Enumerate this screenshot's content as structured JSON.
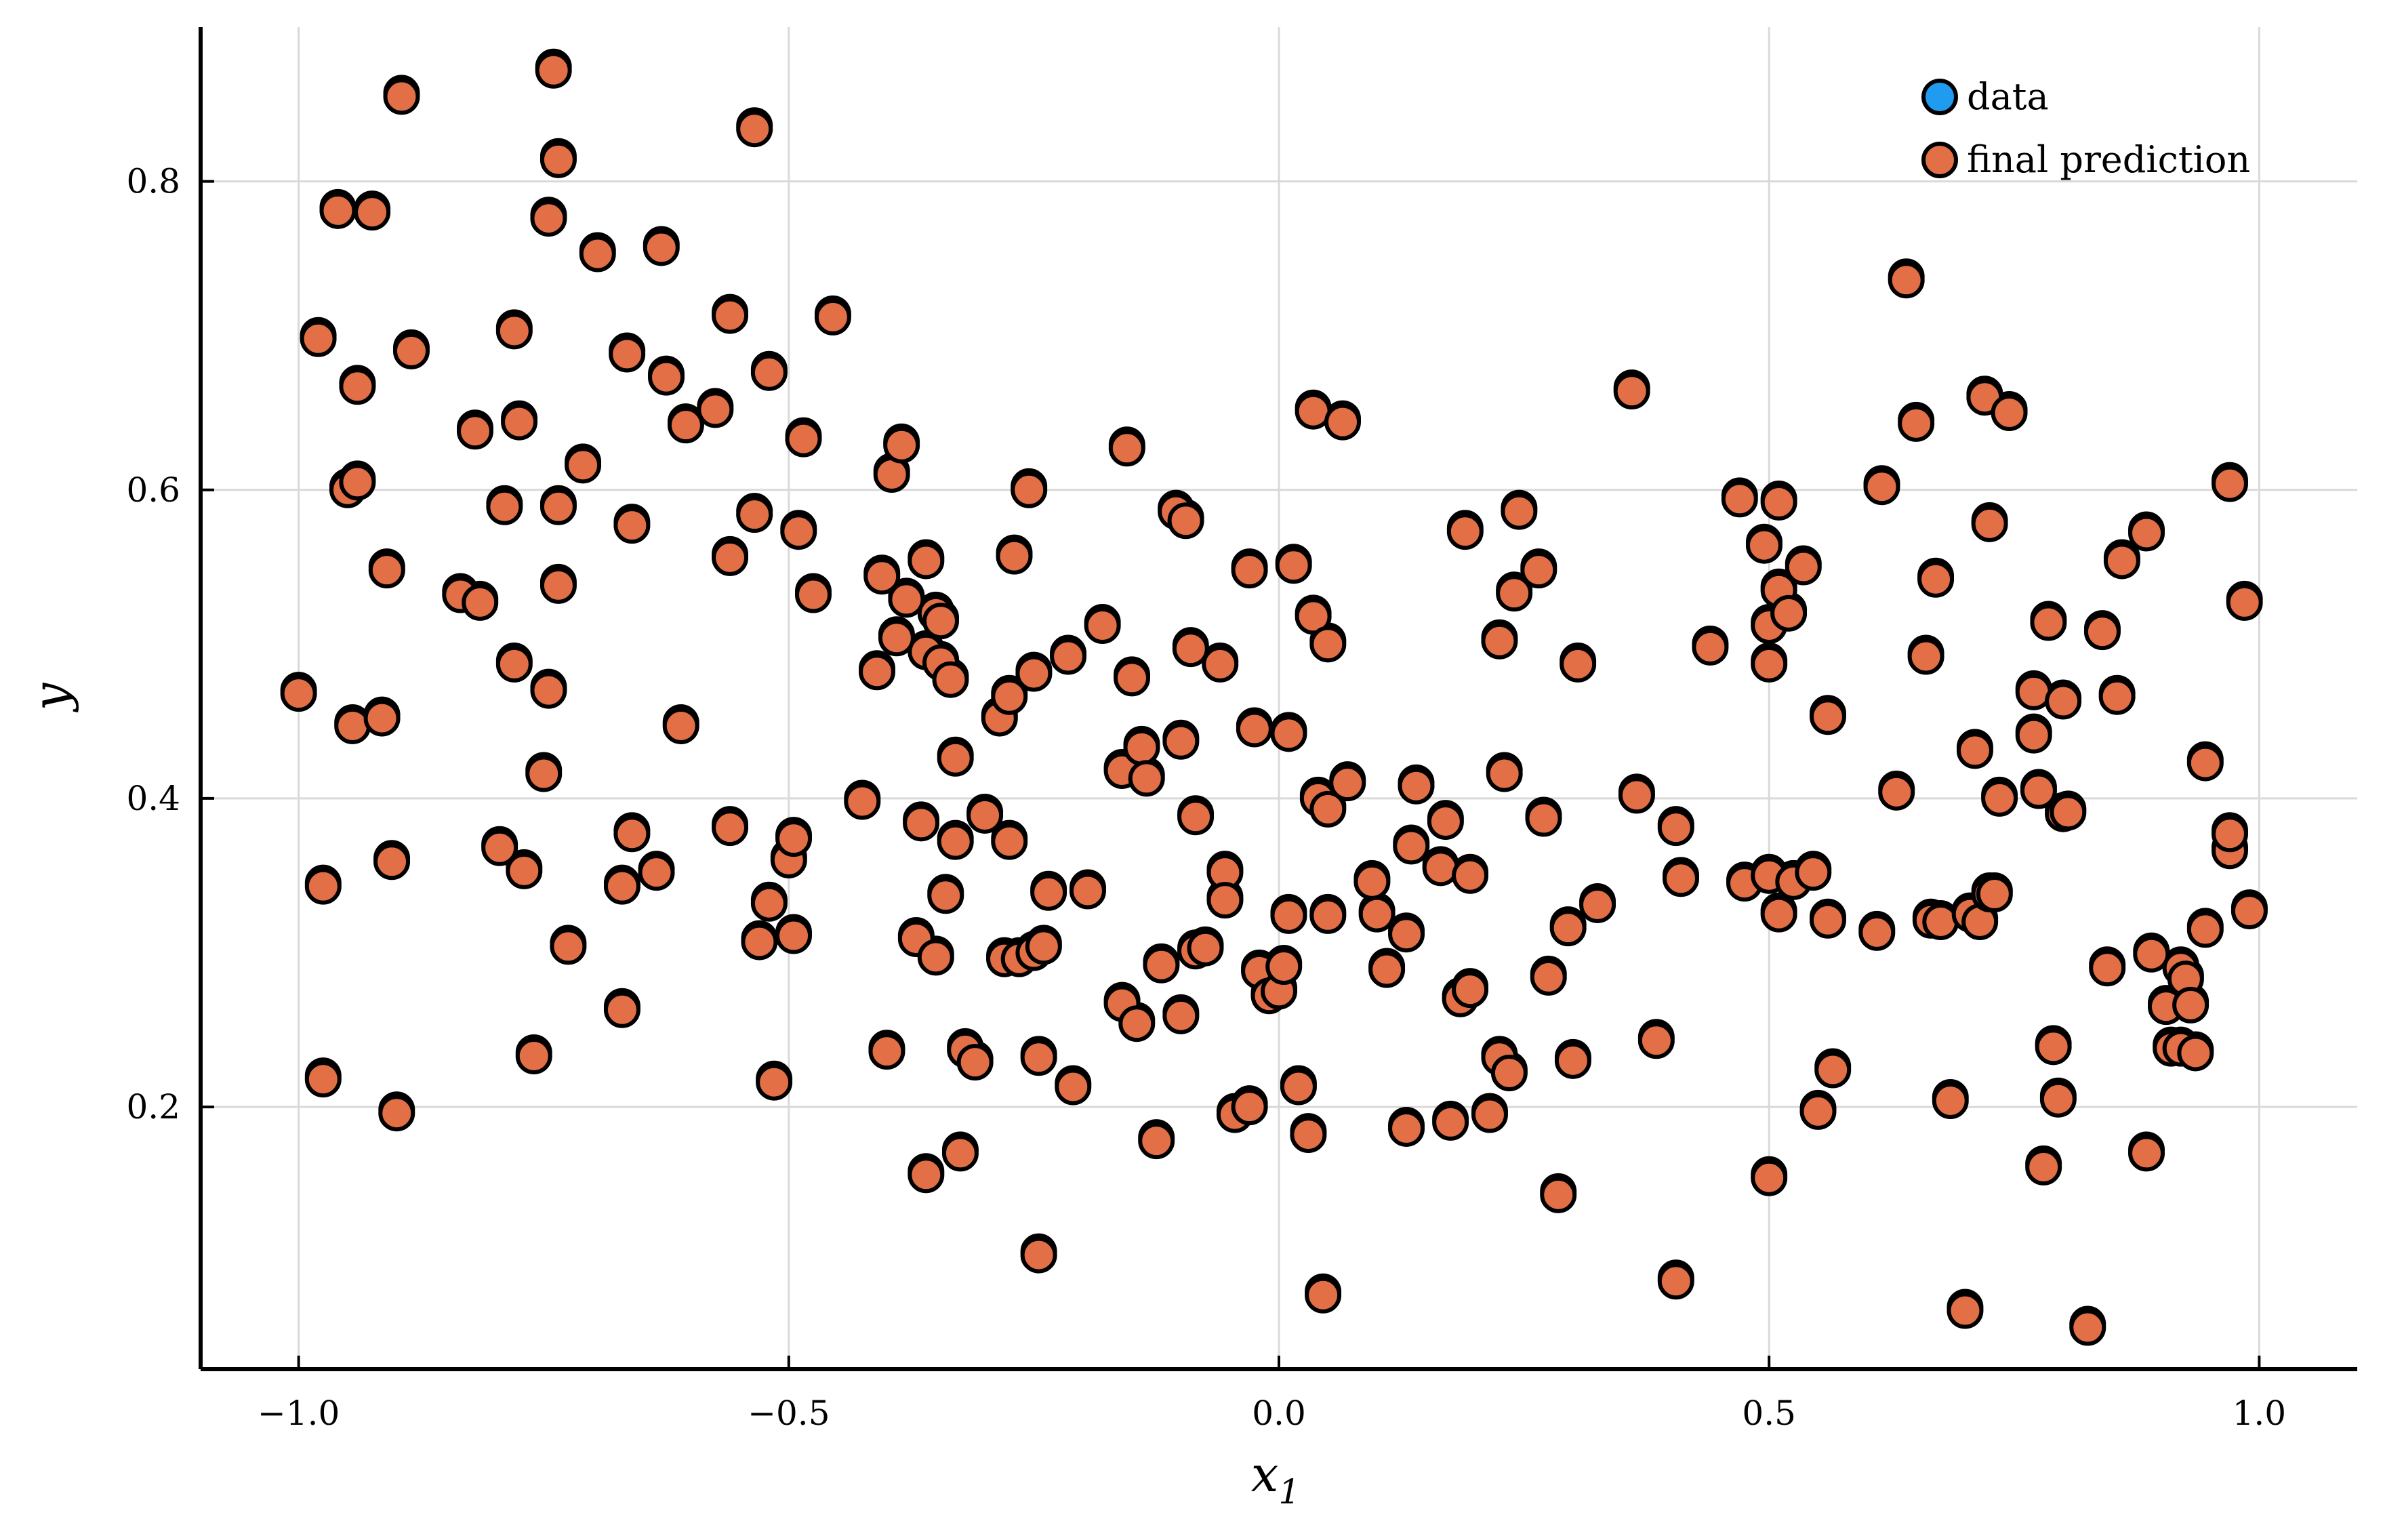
{
  "chart_data": {
    "type": "scatter",
    "title": "",
    "xlabel": "x",
    "xlabel_subscript": "1",
    "ylabel": "y",
    "xlim": [
      -1.1,
      1.1
    ],
    "ylim": [
      0.03,
      0.9
    ],
    "xticks": [
      -1.0,
      -0.5,
      0.0,
      0.5,
      1.0
    ],
    "xtick_labels": [
      "−1.0",
      "−0.5",
      "0.0",
      "0.5",
      "1.0"
    ],
    "yticks": [
      0.2,
      0.4,
      0.6,
      0.8
    ],
    "ytick_labels": [
      "0.2",
      "0.4",
      "0.6",
      "0.8"
    ],
    "grid": true,
    "legend_position": "top-right",
    "series": [
      {
        "name": "data",
        "color": "#1f9cef"
      },
      {
        "name": "final prediction",
        "color": "#e26f46"
      }
    ],
    "points": [
      [
        -1.0,
        0.468
      ],
      [
        -0.98,
        0.698
      ],
      [
        -0.975,
        0.343
      ],
      [
        -0.975,
        0.218
      ],
      [
        -0.96,
        0.781
      ],
      [
        -0.95,
        0.6
      ],
      [
        -0.945,
        0.447
      ],
      [
        -0.94,
        0.667
      ],
      [
        -0.94,
        0.605
      ],
      [
        -0.925,
        0.78
      ],
      [
        -0.915,
        0.452
      ],
      [
        -0.91,
        0.548
      ],
      [
        -0.905,
        0.359
      ],
      [
        -0.9,
        0.196
      ],
      [
        -0.895,
        0.855
      ],
      [
        -0.885,
        0.69
      ],
      [
        -0.835,
        0.532
      ],
      [
        -0.82,
        0.638
      ],
      [
        -0.815,
        0.527
      ],
      [
        -0.795,
        0.368
      ],
      [
        -0.79,
        0.589
      ],
      [
        -0.78,
        0.487
      ],
      [
        -0.78,
        0.703
      ],
      [
        -0.775,
        0.644
      ],
      [
        -0.77,
        0.353
      ],
      [
        -0.76,
        0.233
      ],
      [
        -0.75,
        0.416
      ],
      [
        -0.745,
        0.776
      ],
      [
        -0.745,
        0.47
      ],
      [
        -0.74,
        0.872
      ],
      [
        -0.735,
        0.814
      ],
      [
        -0.735,
        0.589
      ],
      [
        -0.735,
        0.538
      ],
      [
        -0.725,
        0.304
      ],
      [
        -0.71,
        0.616
      ],
      [
        -0.695,
        0.753
      ],
      [
        -0.67,
        0.343
      ],
      [
        -0.67,
        0.263
      ],
      [
        -0.665,
        0.688
      ],
      [
        -0.66,
        0.577
      ],
      [
        -0.66,
        0.377
      ],
      [
        -0.635,
        0.352
      ],
      [
        -0.63,
        0.757
      ],
      [
        -0.625,
        0.673
      ],
      [
        -0.61,
        0.447
      ],
      [
        -0.605,
        0.642
      ],
      [
        -0.575,
        0.652
      ],
      [
        -0.56,
        0.713
      ],
      [
        -0.56,
        0.556
      ],
      [
        -0.56,
        0.381
      ],
      [
        -0.535,
        0.834
      ],
      [
        -0.535,
        0.584
      ],
      [
        -0.53,
        0.307
      ],
      [
        -0.52,
        0.676
      ],
      [
        -0.52,
        0.332
      ],
      [
        -0.515,
        0.216
      ],
      [
        -0.5,
        0.36
      ],
      [
        -0.495,
        0.374
      ],
      [
        -0.495,
        0.311
      ],
      [
        -0.49,
        0.573
      ],
      [
        -0.485,
        0.633
      ],
      [
        -0.475,
        0.532
      ],
      [
        -0.455,
        0.712
      ],
      [
        -0.425,
        0.398
      ],
      [
        -0.41,
        0.482
      ],
      [
        -0.405,
        0.544
      ],
      [
        -0.4,
        0.236
      ],
      [
        -0.395,
        0.61
      ],
      [
        -0.39,
        0.504
      ],
      [
        -0.385,
        0.629
      ],
      [
        -0.38,
        0.529
      ],
      [
        -0.37,
        0.309
      ],
      [
        -0.365,
        0.384
      ],
      [
        -0.36,
        0.554
      ],
      [
        -0.36,
        0.495
      ],
      [
        -0.36,
        0.156
      ],
      [
        -0.35,
        0.52
      ],
      [
        -0.35,
        0.297
      ],
      [
        -0.345,
        0.515
      ],
      [
        -0.345,
        0.488
      ],
      [
        -0.34,
        0.337
      ],
      [
        -0.335,
        0.477
      ],
      [
        -0.33,
        0.426
      ],
      [
        -0.33,
        0.372
      ],
      [
        -0.325,
        0.17
      ],
      [
        -0.32,
        0.237
      ],
      [
        -0.31,
        0.229
      ],
      [
        -0.3,
        0.389
      ],
      [
        -0.285,
        0.452
      ],
      [
        -0.28,
        0.296
      ],
      [
        -0.275,
        0.466
      ],
      [
        -0.275,
        0.372
      ],
      [
        -0.27,
        0.557
      ],
      [
        -0.265,
        0.296
      ],
      [
        -0.255,
        0.6
      ],
      [
        -0.25,
        0.481
      ],
      [
        -0.25,
        0.3
      ],
      [
        -0.245,
        0.232
      ],
      [
        -0.245,
        0.104
      ],
      [
        -0.24,
        0.304
      ],
      [
        -0.235,
        0.339
      ],
      [
        -0.215,
        0.492
      ],
      [
        -0.21,
        0.213
      ],
      [
        -0.195,
        0.34
      ],
      [
        -0.18,
        0.512
      ],
      [
        -0.16,
        0.267
      ],
      [
        -0.16,
        0.418
      ],
      [
        -0.155,
        0.627
      ],
      [
        -0.15,
        0.478
      ],
      [
        -0.145,
        0.254
      ],
      [
        -0.14,
        0.433
      ],
      [
        -0.135,
        0.413
      ],
      [
        -0.125,
        0.178
      ],
      [
        -0.12,
        0.292
      ],
      [
        -0.105,
        0.586
      ],
      [
        -0.1,
        0.437
      ],
      [
        -0.1,
        0.259
      ],
      [
        -0.095,
        0.58
      ],
      [
        -0.09,
        0.497
      ],
      [
        -0.085,
        0.388
      ],
      [
        -0.085,
        0.301
      ],
      [
        -0.075,
        0.303
      ],
      [
        -0.06,
        0.487
      ],
      [
        -0.055,
        0.352
      ],
      [
        -0.055,
        0.334
      ],
      [
        -0.045,
        0.195
      ],
      [
        -0.03,
        0.548
      ],
      [
        -0.03,
        0.2
      ],
      [
        -0.025,
        0.445
      ],
      [
        -0.02,
        0.288
      ],
      [
        -0.01,
        0.272
      ],
      [
        0.0,
        0.275
      ],
      [
        0.005,
        0.291
      ],
      [
        0.01,
        0.442
      ],
      [
        0.01,
        0.324
      ],
      [
        0.015,
        0.551
      ],
      [
        0.02,
        0.213
      ],
      [
        0.03,
        0.182
      ],
      [
        0.035,
        0.651
      ],
      [
        0.035,
        0.518
      ],
      [
        0.04,
        0.4
      ],
      [
        0.045,
        0.078
      ],
      [
        0.05,
        0.5
      ],
      [
        0.05,
        0.393
      ],
      [
        0.05,
        0.324
      ],
      [
        0.065,
        0.644
      ],
      [
        0.07,
        0.41
      ],
      [
        0.095,
        0.346
      ],
      [
        0.1,
        0.325
      ],
      [
        0.11,
        0.289
      ],
      [
        0.13,
        0.312
      ],
      [
        0.13,
        0.186
      ],
      [
        0.135,
        0.369
      ],
      [
        0.14,
        0.408
      ],
      [
        0.165,
        0.355
      ],
      [
        0.17,
        0.385
      ],
      [
        0.175,
        0.19
      ],
      [
        0.185,
        0.27
      ],
      [
        0.19,
        0.573
      ],
      [
        0.195,
        0.276
      ],
      [
        0.195,
        0.35
      ],
      [
        0.215,
        0.195
      ],
      [
        0.225,
        0.502
      ],
      [
        0.225,
        0.232
      ],
      [
        0.23,
        0.416
      ],
      [
        0.235,
        0.222
      ],
      [
        0.24,
        0.533
      ],
      [
        0.245,
        0.586
      ],
      [
        0.265,
        0.548
      ],
      [
        0.27,
        0.387
      ],
      [
        0.275,
        0.284
      ],
      [
        0.285,
        0.143
      ],
      [
        0.295,
        0.316
      ],
      [
        0.3,
        0.23
      ],
      [
        0.305,
        0.487
      ],
      [
        0.325,
        0.331
      ],
      [
        0.36,
        0.664
      ],
      [
        0.365,
        0.402
      ],
      [
        0.385,
        0.243
      ],
      [
        0.405,
        0.381
      ],
      [
        0.405,
        0.087
      ],
      [
        0.41,
        0.348
      ],
      [
        0.44,
        0.498
      ],
      [
        0.47,
        0.594
      ],
      [
        0.475,
        0.345
      ],
      [
        0.495,
        0.564
      ],
      [
        0.5,
        0.512
      ],
      [
        0.5,
        0.487
      ],
      [
        0.5,
        0.35
      ],
      [
        0.5,
        0.154
      ],
      [
        0.51,
        0.535
      ],
      [
        0.51,
        0.592
      ],
      [
        0.51,
        0.325
      ],
      [
        0.52,
        0.52
      ],
      [
        0.525,
        0.346
      ],
      [
        0.535,
        0.55
      ],
      [
        0.545,
        0.352
      ],
      [
        0.55,
        0.197
      ],
      [
        0.56,
        0.321
      ],
      [
        0.56,
        0.453
      ],
      [
        0.565,
        0.224
      ],
      [
        0.61,
        0.313
      ],
      [
        0.615,
        0.602
      ],
      [
        0.63,
        0.404
      ],
      [
        0.64,
        0.736
      ],
      [
        0.65,
        0.643
      ],
      [
        0.66,
        0.492
      ],
      [
        0.665,
        0.321
      ],
      [
        0.67,
        0.542
      ],
      [
        0.675,
        0.32
      ],
      [
        0.685,
        0.204
      ],
      [
        0.7,
        0.068
      ],
      [
        0.705,
        0.325
      ],
      [
        0.71,
        0.431
      ],
      [
        0.715,
        0.32
      ],
      [
        0.72,
        0.66
      ],
      [
        0.725,
        0.338
      ],
      [
        0.725,
        0.578
      ],
      [
        0.73,
        0.338
      ],
      [
        0.735,
        0.4
      ],
      [
        0.745,
        0.65
      ],
      [
        0.77,
        0.469
      ],
      [
        0.77,
        0.441
      ],
      [
        0.775,
        0.405
      ],
      [
        0.78,
        0.161
      ],
      [
        0.785,
        0.514
      ],
      [
        0.79,
        0.239
      ],
      [
        0.795,
        0.205
      ],
      [
        0.8,
        0.39
      ],
      [
        0.8,
        0.463
      ],
      [
        0.805,
        0.391
      ],
      [
        0.84,
        0.508
      ],
      [
        0.845,
        0.29
      ],
      [
        0.855,
        0.466
      ],
      [
        0.86,
        0.554
      ],
      [
        0.885,
        0.572
      ],
      [
        0.885,
        0.17
      ],
      [
        0.89,
        0.299
      ],
      [
        0.905,
        0.265
      ],
      [
        0.91,
        0.238
      ],
      [
        0.92,
        0.29
      ],
      [
        0.92,
        0.238
      ],
      [
        0.925,
        0.283
      ],
      [
        0.93,
        0.266
      ],
      [
        0.935,
        0.235
      ],
      [
        0.945,
        0.423
      ],
      [
        0.945,
        0.315
      ],
      [
        0.97,
        0.604
      ],
      [
        0.97,
        0.366
      ],
      [
        0.97,
        0.377
      ],
      [
        0.985,
        0.527
      ],
      [
        0.99,
        0.327
      ],
      [
        0.825,
        0.057
      ]
    ]
  }
}
